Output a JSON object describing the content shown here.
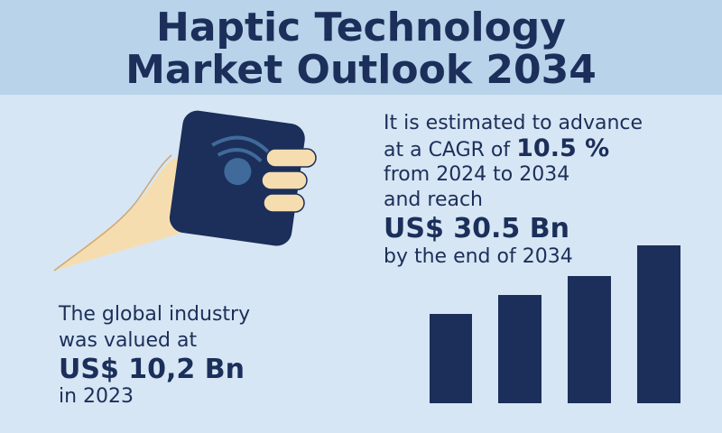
{
  "header": {
    "title_lines": [
      "Haptic Technology",
      "Market Outlook 2034"
    ]
  },
  "forecast": {
    "line1": "It is estimated to advance",
    "cagr_prefix": "at a CAGR of",
    "cagr": "10.5 %",
    "period": "from 2024 to 2034",
    "reach_prefix": "and reach",
    "target": "US$ 30.5 Bn",
    "suffix": "by the end of 2034"
  },
  "current": {
    "line1": "The global industry",
    "line2": "was valued at",
    "value": "US$ 10,2 Bn",
    "year": "in 2023"
  }
}
